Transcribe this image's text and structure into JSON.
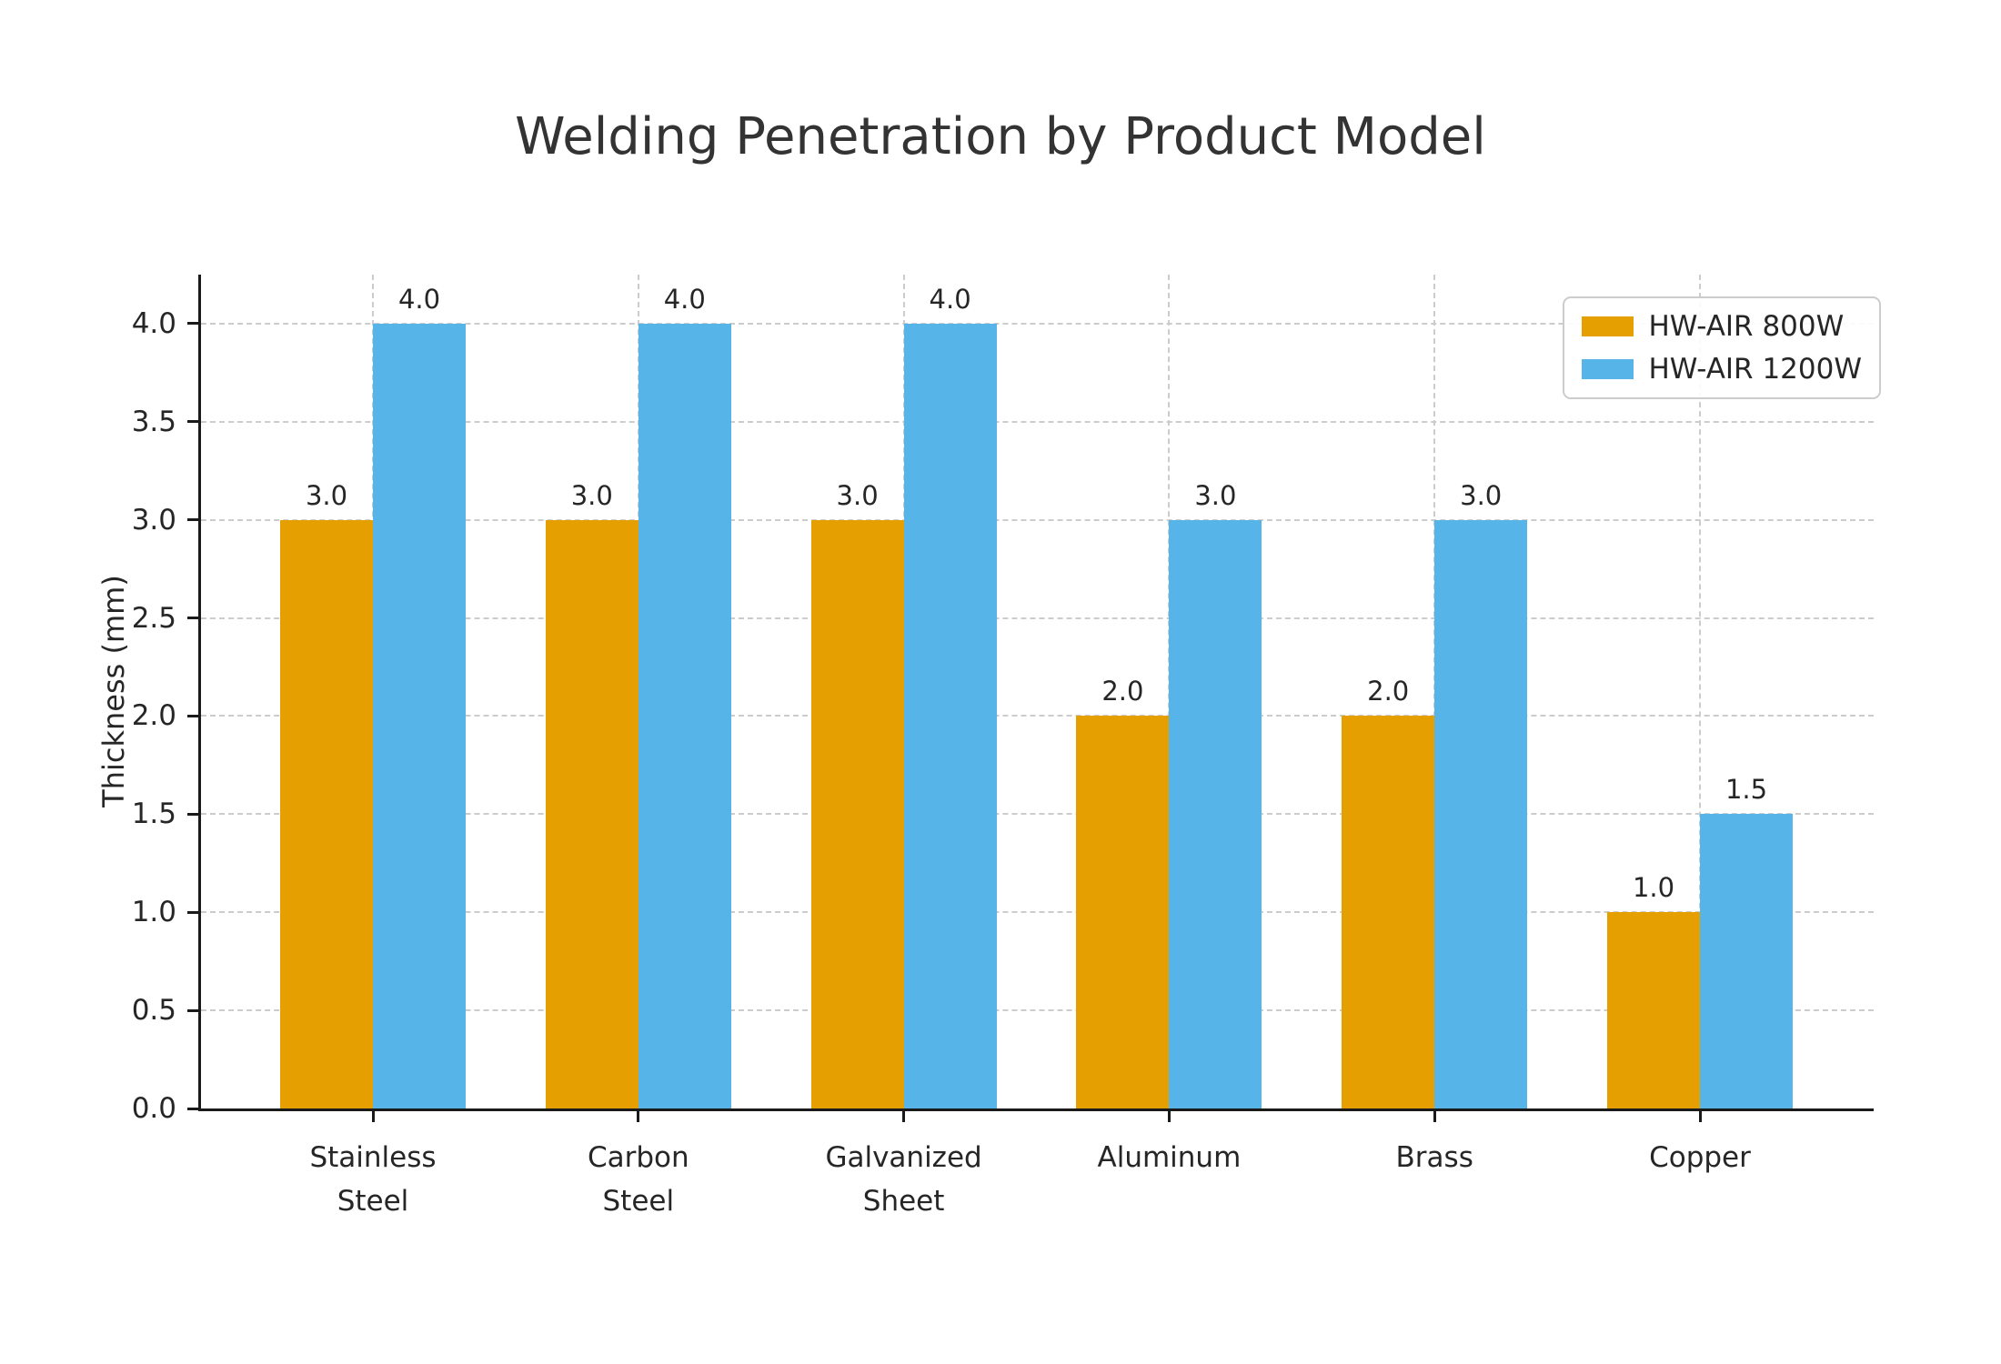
{
  "chart_data": {
    "type": "bar",
    "title": "Welding Penetration by Product Model",
    "ylabel": "Thickness (mm)",
    "xlabel": "",
    "categories": [
      "Stainless Steel",
      "Carbon Steel",
      "Galvanized Sheet",
      "Aluminum",
      "Brass",
      "Copper"
    ],
    "series": [
      {
        "name": "HW-AIR 800W",
        "color": "#E69F00",
        "values": [
          3.0,
          3.0,
          3.0,
          2.0,
          2.0,
          1.0
        ]
      },
      {
        "name": "HW-AIR 1200W",
        "color": "#56B4E9",
        "values": [
          4.0,
          4.0,
          4.0,
          3.0,
          3.0,
          1.5
        ]
      }
    ],
    "bar_value_labels": [
      "3.0",
      "4.0",
      "3.0",
      "4.0",
      "3.0",
      "4.0",
      "2.0",
      "3.0",
      "2.0",
      "3.0",
      "1.0",
      "1.5"
    ],
    "yticks": [
      0.0,
      0.5,
      1.0,
      1.5,
      2.0,
      2.5,
      3.0,
      3.5,
      4.0
    ],
    "ylim": [
      0,
      4.25
    ],
    "grid": {
      "style": "dashed",
      "color": "#cccccc",
      "x": true,
      "y": true
    },
    "legend": {
      "position": "upper right"
    },
    "text_color": "#262626",
    "axis_color": "#1a1a1a",
    "title_color": "#333333",
    "background": "#ffffff"
  }
}
